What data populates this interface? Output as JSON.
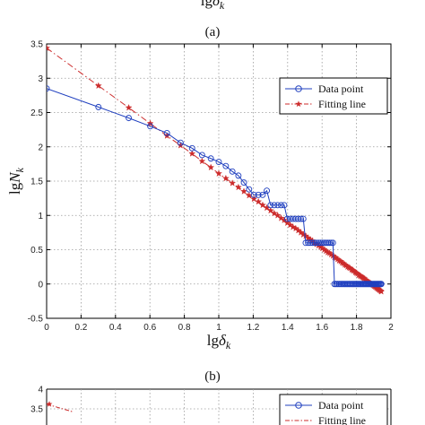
{
  "page": {
    "top_xlabel_partial": "lgδk",
    "panel_a_label": "(a)",
    "panel_b_label": "(b)"
  },
  "colors": {
    "data_point": "#1f3fbf",
    "fitting_line": "#cc2b2b",
    "grid": "#9a9a9a"
  },
  "chart_data": [
    {
      "type": "line",
      "title": "",
      "xlabel": "lgδk",
      "ylabel": "lgNk",
      "xlim": [
        0,
        2
      ],
      "ylim": [
        -0.5,
        3.5
      ],
      "xticks": [
        "0",
        "0.2",
        "0.4",
        "0.6",
        "0.8",
        "1",
        "1.2",
        "1.4",
        "1.6",
        "1.8",
        "2"
      ],
      "yticks": [
        "-0.5",
        "0",
        "0.5",
        "1",
        "1.5",
        "2",
        "2.5",
        "3",
        "3.5"
      ],
      "grid": true,
      "legend_position": "top-right",
      "series": [
        {
          "name": "Data point",
          "marker": "circle",
          "line": "solid",
          "x": [
            0,
            0.301,
            0.477,
            0.602,
            0.699,
            0.778,
            0.845,
            0.903,
            0.954,
            1.0,
            1.041,
            1.079,
            1.114,
            1.146,
            1.176,
            1.204,
            1.23,
            1.255,
            1.279,
            1.301,
            1.322,
            1.342,
            1.362,
            1.38,
            1.398,
            1.415,
            1.431,
            1.447,
            1.462,
            1.477,
            1.491,
            1.505,
            1.519,
            1.531,
            1.544,
            1.556,
            1.568,
            1.58,
            1.591,
            1.602,
            1.613,
            1.623,
            1.633,
            1.643,
            1.653,
            1.663,
            1.672,
            1.681,
            1.69,
            1.699,
            1.708,
            1.716,
            1.724,
            1.732,
            1.74,
            1.748,
            1.756,
            1.763,
            1.771,
            1.778,
            1.785,
            1.792,
            1.799,
            1.806,
            1.813,
            1.82,
            1.826,
            1.833,
            1.839,
            1.845,
            1.851,
            1.857,
            1.863,
            1.869,
            1.875,
            1.881,
            1.886,
            1.892,
            1.898,
            1.903,
            1.908,
            1.914,
            1.919,
            1.924,
            1.929,
            1.934,
            1.94,
            1.944
          ],
          "y": [
            2.85,
            2.58,
            2.42,
            2.3,
            2.2,
            2.06,
            1.98,
            1.88,
            1.83,
            1.78,
            1.72,
            1.64,
            1.58,
            1.48,
            1.38,
            1.3,
            1.3,
            1.3,
            1.36,
            1.15,
            1.15,
            1.15,
            1.15,
            1.15,
            0.95,
            0.95,
            0.95,
            0.95,
            0.95,
            0.95,
            0.95,
            0.6,
            0.6,
            0.6,
            0.6,
            0.6,
            0.6,
            0.6,
            0.6,
            0.6,
            0.6,
            0.6,
            0.6,
            0.6,
            0.6,
            0.6,
            0.0,
            0.0,
            0.0,
            0.0,
            0.0,
            0.0,
            0.0,
            0.0,
            0.0,
            0.0,
            0.0,
            0.0,
            0.0,
            0.0,
            0.0,
            0.0,
            0.0,
            0.0,
            0.0,
            0.0,
            0.0,
            0.0,
            0.0,
            0.0,
            0.0,
            0.0,
            0.0,
            0.0,
            0.0,
            0.0,
            0.0,
            0.0,
            0.0,
            0.0,
            0.0,
            0.0,
            0.0,
            0.0,
            0.0,
            0.0,
            0.0,
            0.0
          ]
        },
        {
          "name": "Fitting line",
          "marker": "star",
          "line": "dash-dot",
          "x": [
            0,
            0.301,
            0.477,
            0.602,
            0.699,
            0.778,
            0.845,
            0.903,
            0.954,
            1.0,
            1.041,
            1.079,
            1.114,
            1.146,
            1.176,
            1.204,
            1.23,
            1.255,
            1.279,
            1.301,
            1.322,
            1.342,
            1.362,
            1.38,
            1.398,
            1.415,
            1.431,
            1.447,
            1.462,
            1.477,
            1.491,
            1.505,
            1.519,
            1.531,
            1.544,
            1.556,
            1.568,
            1.58,
            1.591,
            1.602,
            1.613,
            1.623,
            1.633,
            1.643,
            1.653,
            1.663,
            1.672,
            1.681,
            1.69,
            1.699,
            1.708,
            1.716,
            1.724,
            1.732,
            1.74,
            1.748,
            1.756,
            1.763,
            1.771,
            1.778,
            1.785,
            1.792,
            1.799,
            1.806,
            1.813,
            1.82,
            1.826,
            1.833,
            1.839,
            1.845,
            1.851,
            1.857,
            1.863,
            1.869,
            1.875,
            1.881,
            1.886,
            1.892,
            1.898,
            1.903,
            1.908,
            1.914,
            1.919,
            1.924,
            1.929,
            1.934,
            1.94,
            1.944
          ],
          "y": [
            3.44,
            2.89,
            2.57,
            2.34,
            2.16,
            2.02,
            1.9,
            1.79,
            1.7,
            1.61,
            1.54,
            1.47,
            1.41,
            1.35,
            1.29,
            1.24,
            1.2,
            1.15,
            1.11,
            1.07,
            1.03,
            1.0,
            0.96,
            0.93,
            0.89,
            0.86,
            0.83,
            0.81,
            0.78,
            0.75,
            0.72,
            0.7,
            0.67,
            0.65,
            0.63,
            0.6,
            0.58,
            0.56,
            0.54,
            0.52,
            0.5,
            0.48,
            0.46,
            0.45,
            0.43,
            0.41,
            0.39,
            0.38,
            0.36,
            0.34,
            0.33,
            0.31,
            0.3,
            0.28,
            0.27,
            0.25,
            0.24,
            0.23,
            0.21,
            0.2,
            0.19,
            0.17,
            0.16,
            0.15,
            0.13,
            0.12,
            0.11,
            0.1,
            0.09,
            0.08,
            0.06,
            0.05,
            0.04,
            0.03,
            0.02,
            0.01,
            0.0,
            -0.01,
            -0.02,
            -0.03,
            -0.04,
            -0.05,
            -0.06,
            -0.07,
            -0.08,
            -0.09,
            -0.1,
            -0.11
          ]
        }
      ]
    },
    {
      "type": "line",
      "title": "",
      "xlabel": "",
      "ylabel": "",
      "ylim": [
        3.5,
        4
      ],
      "yticks": [
        "4",
        "3.5"
      ],
      "legend_position": "top-right",
      "series": [
        {
          "name": "Data point",
          "marker": "circle",
          "line": "solid"
        },
        {
          "name": "Fitting line",
          "marker": "star",
          "line": "dash-dot"
        }
      ]
    }
  ]
}
